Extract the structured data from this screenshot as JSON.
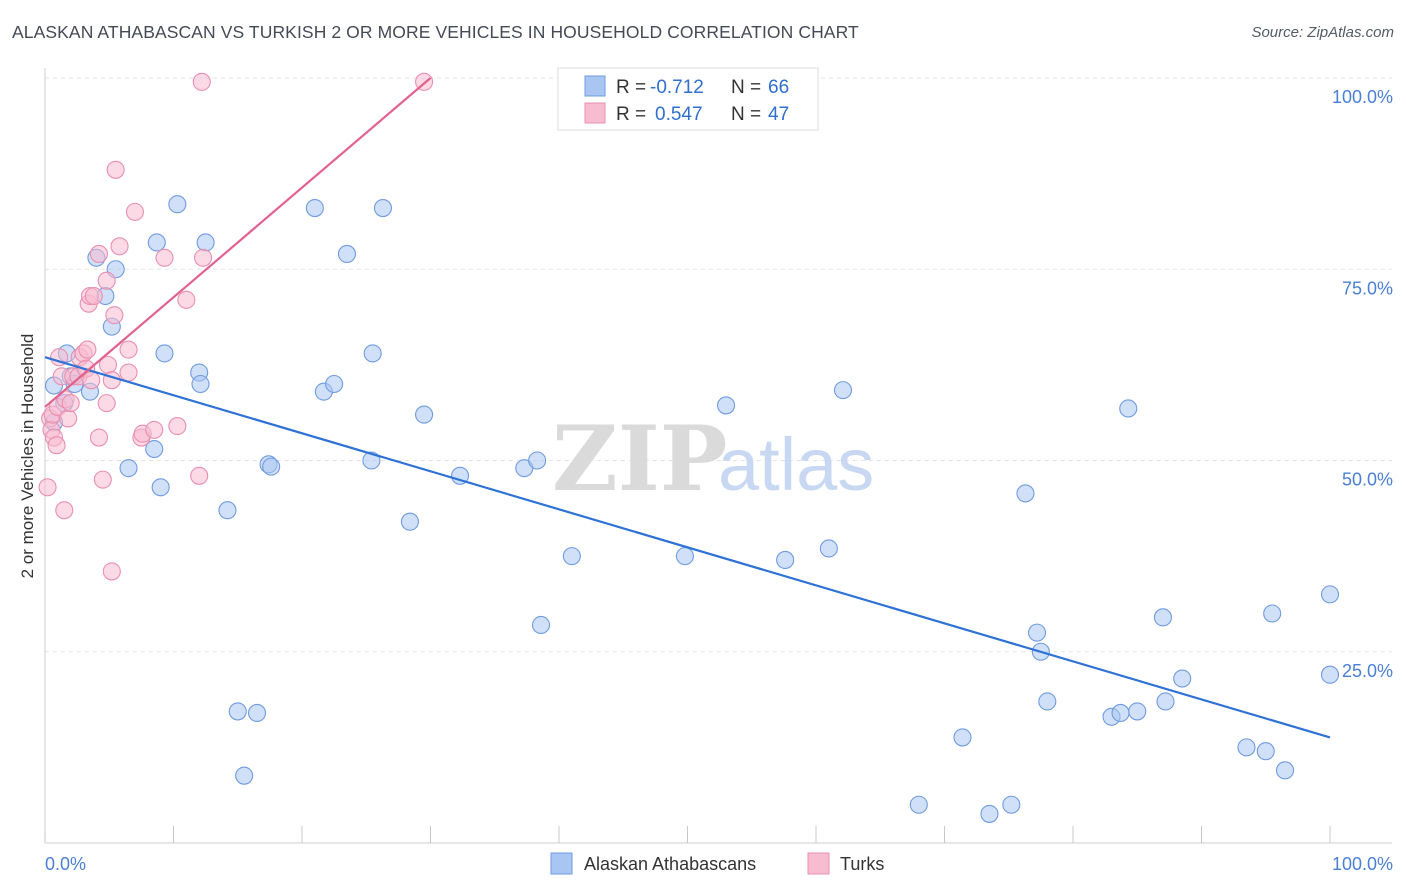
{
  "title": "ALASKAN ATHABASCAN VS TURKISH 2 OR MORE VEHICLES IN HOUSEHOLD CORRELATION CHART",
  "source": "Source: ZipAtlas.com",
  "watermark": {
    "zip": "ZIP",
    "atlas": "atlas"
  },
  "legend": {
    "r_label": "R =",
    "n_label": "N =",
    "series1": {
      "r": "-0.712",
      "n": "66"
    },
    "series2": {
      "r": "0.547",
      "n": "47"
    }
  },
  "chart_data": {
    "type": "scatter",
    "title": "ALASKAN ATHABASCAN VS TURKISH 2 OR MORE VEHICLES IN HOUSEHOLD CORRELATION CHART",
    "xlabel": "",
    "ylabel": "2 or more Vehicles in Household",
    "xlim": [
      0,
      100
    ],
    "ylim": [
      0,
      100
    ],
    "x_tick_labels": [
      "0.0%",
      "100.0%"
    ],
    "y_tick_labels": [
      "100.0%",
      "75.0%",
      "50.0%",
      "25.0%"
    ],
    "y_ticks": [
      100,
      75,
      50,
      25
    ],
    "grid": true,
    "legend_position": "top-center",
    "colors": {
      "series1_fill": "#a9c6f2",
      "series1_stroke": "#6f9be0",
      "series1_line": "#2f72d6",
      "series2_fill": "#f7bcd0",
      "series2_stroke": "#e98fb0",
      "series2_line": "#e2628e"
    },
    "series": [
      {
        "name": "Alaskan Athabascans",
        "trend": {
          "x": [
            0,
            100
          ],
          "y": [
            63.5,
            13.8
          ]
        },
        "points": [
          [
            0.7,
            59.8
          ],
          [
            0.7,
            55
          ],
          [
            1.5,
            57.5
          ],
          [
            1.7,
            64
          ],
          [
            2,
            61
          ],
          [
            2.3,
            60
          ],
          [
            3.5,
            59
          ],
          [
            4.7,
            71.5
          ],
          [
            5.2,
            67.5
          ],
          [
            4,
            76.5
          ],
          [
            5.5,
            75
          ],
          [
            6.5,
            49
          ],
          [
            8.5,
            51.5
          ],
          [
            8.7,
            78.5
          ],
          [
            9,
            46.5
          ],
          [
            9.3,
            64
          ],
          [
            10.3,
            83.5
          ],
          [
            12,
            61.5
          ],
          [
            12.1,
            60
          ],
          [
            14.2,
            43.5
          ],
          [
            17.4,
            49.5
          ],
          [
            17.6,
            49.2
          ],
          [
            21,
            83
          ],
          [
            21.7,
            59
          ],
          [
            22.5,
            60
          ],
          [
            23.5,
            77
          ],
          [
            25.5,
            64
          ],
          [
            25.4,
            50
          ],
          [
            26.3,
            83
          ],
          [
            28.4,
            42
          ],
          [
            29.5,
            56
          ],
          [
            32.3,
            48
          ],
          [
            37.3,
            49
          ],
          [
            38.3,
            50
          ],
          [
            38.6,
            28.5
          ],
          [
            41,
            37.5
          ],
          [
            49.8,
            37.5
          ],
          [
            53,
            57.2
          ],
          [
            57.6,
            37
          ],
          [
            61,
            38.5
          ],
          [
            62.1,
            59.2
          ],
          [
            76.3,
            45.7
          ],
          [
            71.4,
            13.8
          ],
          [
            73.5,
            3.8
          ],
          [
            77.2,
            27.5
          ],
          [
            77.5,
            25
          ],
          [
            78,
            18.5
          ],
          [
            84.3,
            56.8
          ],
          [
            83,
            16.5
          ],
          [
            83.7,
            17
          ],
          [
            85,
            17.2
          ],
          [
            87.2,
            18.5
          ],
          [
            88.5,
            21.5
          ],
          [
            87,
            29.5
          ],
          [
            93.5,
            12.5
          ],
          [
            95,
            12
          ],
          [
            95.5,
            30
          ],
          [
            96.5,
            9.5
          ],
          [
            100,
            22
          ],
          [
            100,
            32.5
          ],
          [
            15,
            17.2
          ],
          [
            16.5,
            17
          ],
          [
            15.5,
            8.8
          ],
          [
            68,
            5
          ],
          [
            75.2,
            5
          ],
          [
            12.5,
            78.5
          ]
        ]
      },
      {
        "name": "Turks",
        "trend": {
          "x": [
            0,
            30
          ],
          "y": [
            57,
            100
          ]
        },
        "points": [
          [
            0.2,
            46.5
          ],
          [
            0.4,
            55.5
          ],
          [
            0.5,
            54
          ],
          [
            0.6,
            56
          ],
          [
            0.7,
            53
          ],
          [
            0.9,
            52
          ],
          [
            1,
            57
          ],
          [
            1.1,
            63.5
          ],
          [
            1.3,
            61
          ],
          [
            1.5,
            43.5
          ],
          [
            1.6,
            58
          ],
          [
            1.8,
            55.5
          ],
          [
            2,
            57.5
          ],
          [
            2.2,
            61
          ],
          [
            2.6,
            61
          ],
          [
            2.7,
            63.5
          ],
          [
            3,
            64
          ],
          [
            3.2,
            62
          ],
          [
            3.4,
            70.5
          ],
          [
            3.3,
            64.5
          ],
          [
            3.5,
            71.5
          ],
          [
            3.6,
            60.5
          ],
          [
            3.8,
            71.5
          ],
          [
            4.2,
            53
          ],
          [
            4.5,
            47.5
          ],
          [
            4.2,
            77
          ],
          [
            4.8,
            73.5
          ],
          [
            4.8,
            57.5
          ],
          [
            4.9,
            62.5
          ],
          [
            5.2,
            60.5
          ],
          [
            5.8,
            78
          ],
          [
            5.2,
            35.5
          ],
          [
            5.5,
            88
          ],
          [
            5.4,
            69
          ],
          [
            6.5,
            64.5
          ],
          [
            6.5,
            61.5
          ],
          [
            7,
            82.5
          ],
          [
            7.5,
            53
          ],
          [
            7.6,
            53.5
          ],
          [
            8.5,
            54
          ],
          [
            9.3,
            76.5
          ],
          [
            10.3,
            54.5
          ],
          [
            11,
            71
          ],
          [
            12,
            48
          ],
          [
            12.3,
            76.5
          ],
          [
            12.2,
            99.5
          ],
          [
            29.5,
            99.5
          ]
        ]
      }
    ]
  },
  "bottom_legend": {
    "series1": "Alaskan Athabascans",
    "series2": "Turks"
  }
}
